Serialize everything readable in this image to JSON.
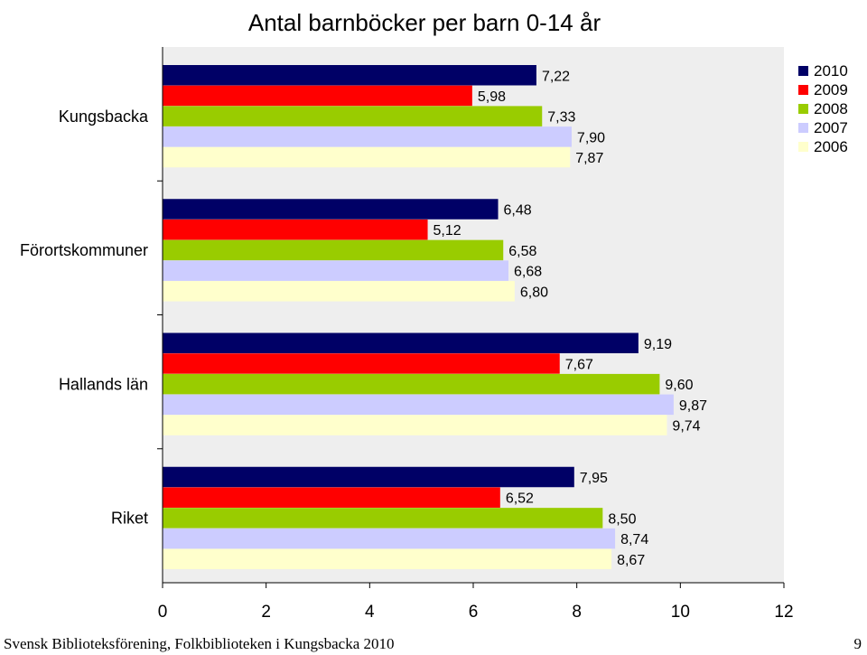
{
  "chart_data": {
    "type": "bar",
    "orientation": "horizontal",
    "title": "Antal barnböcker per barn 0-14 år",
    "categories": [
      "Kungsbacka",
      "Förortskommuner",
      "Hallands län",
      "Riket"
    ],
    "series": [
      {
        "name": "2010",
        "color": "#000066",
        "values": [
          7.22,
          6.48,
          9.19,
          7.95
        ],
        "labels": [
          "7,22",
          "6,48",
          "9,19",
          "7,95"
        ]
      },
      {
        "name": "2009",
        "color": "#ff0000",
        "values": [
          5.98,
          5.12,
          7.67,
          6.52
        ],
        "labels": [
          "5,98",
          "5,12",
          "7,67",
          "6,52"
        ]
      },
      {
        "name": "2008",
        "color": "#99cc00",
        "values": [
          7.33,
          6.58,
          9.6,
          8.5
        ],
        "labels": [
          "7,33",
          "6,58",
          "9,60",
          "8,50"
        ]
      },
      {
        "name": "2007",
        "color": "#ccccff",
        "values": [
          7.9,
          6.68,
          9.87,
          8.74
        ],
        "labels": [
          "7,90",
          "6,68",
          "9,87",
          "8,74"
        ]
      },
      {
        "name": "2006",
        "color": "#ffffcc",
        "values": [
          7.87,
          6.8,
          9.74,
          8.67
        ],
        "labels": [
          "7,87",
          "6,80",
          "9,74",
          "8,67"
        ]
      }
    ],
    "xlim": [
      0,
      12
    ],
    "xticks": [
      "0",
      "2",
      "4",
      "6",
      "8",
      "10",
      "12"
    ],
    "grid": false,
    "legend_position": "top-right",
    "plot_background": "#eeeeee"
  },
  "footer": {
    "text": "Svensk Biblioteksförening, Folkbiblioteken i Kungsbacka 2010",
    "page_number": "9"
  }
}
